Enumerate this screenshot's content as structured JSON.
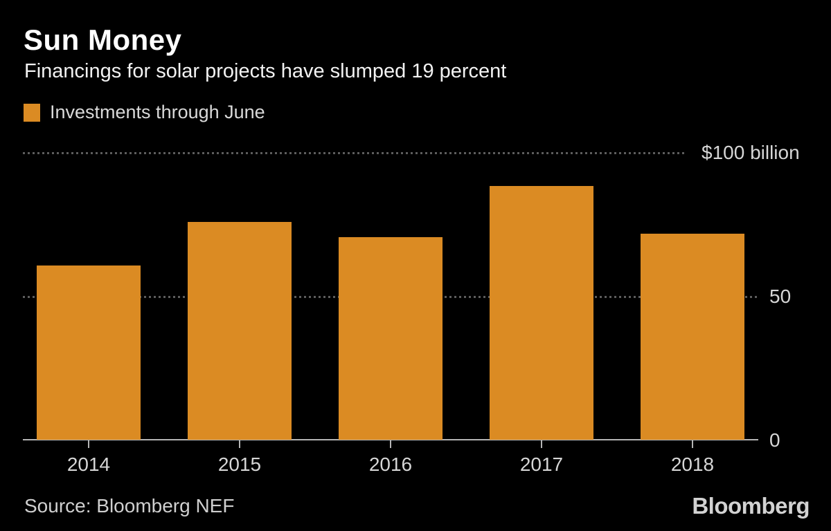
{
  "header": {
    "title": "Sun Money",
    "subtitle": "Financings for solar projects have slumped 19 percent"
  },
  "legend": {
    "label": "Investments through June"
  },
  "colors": {
    "background": "#000000",
    "bar": "#db8b23",
    "axis": "#b5b5b5",
    "grid": "#5d5d5d",
    "title_text": "#ffffff",
    "label_text": "#d6d6d6"
  },
  "chart_data": {
    "type": "bar",
    "title": "Sun Money",
    "subtitle": "Financings for solar projects have slumped 19 percent",
    "series_name": "Investments through June",
    "categories": [
      "2014",
      "2015",
      "2016",
      "2017",
      "2018"
    ],
    "values": [
      60.6,
      75.8,
      70.5,
      88.3,
      71.6
    ],
    "unit": "$ billion",
    "ylim": [
      0,
      100
    ],
    "yticks": [
      {
        "value": 100,
        "label": "$100 billion"
      },
      {
        "value": 50,
        "label": "50"
      },
      {
        "value": 0,
        "label": "0"
      }
    ],
    "grid": "dotted horizontal gridlines",
    "legend_position": "top-left"
  },
  "footer": {
    "source": "Source: Bloomberg NEF",
    "logo": "Bloomberg"
  }
}
